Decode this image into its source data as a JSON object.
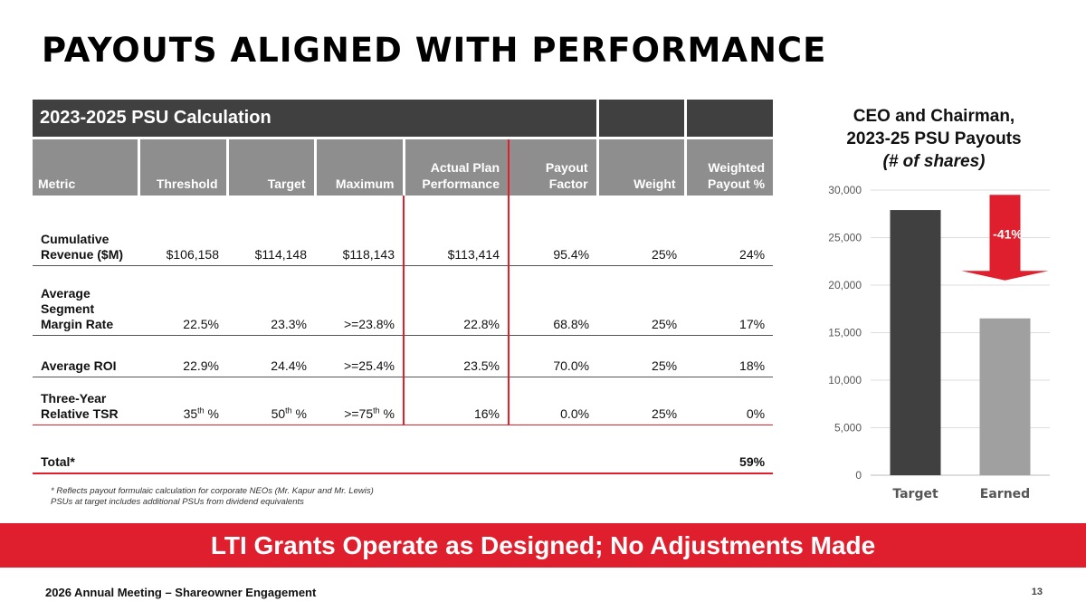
{
  "title": "PAYOUTS ALIGNED WITH PERFORMANCE",
  "table": {
    "banner": "2023-2025 PSU Calculation",
    "headers": {
      "metric": "Metric",
      "threshold": "Threshold",
      "target": "Target",
      "maximum": "Maximum",
      "actual_1": "Actual Plan",
      "actual_2": "Performance",
      "payout_1": "Payout",
      "payout_2": "Factor",
      "weight": "Weight",
      "weighted_1": "Weighted",
      "weighted_2": "Payout %"
    },
    "rows": [
      {
        "metric_1": "Cumulative",
        "metric_2": "Revenue ($M)",
        "threshold": "$106,158",
        "target": "$114,148",
        "maximum": "$118,143",
        "actual": "$113,414",
        "payout": "95.4%",
        "weight": "25%",
        "weighted": "24%"
      },
      {
        "metric_1": "Average",
        "metric_2": "Segment",
        "metric_3": "Margin Rate",
        "threshold": "22.5%",
        "target": "23.3%",
        "maximum": ">=23.8%",
        "actual": "22.8%",
        "payout": "68.8%",
        "weight": "25%",
        "weighted": "17%"
      },
      {
        "metric_1": "Average ROI",
        "threshold": "22.9%",
        "target": "24.4%",
        "maximum": ">=25.4%",
        "actual": "23.5%",
        "payout": "70.0%",
        "weight": "25%",
        "weighted": "18%"
      },
      {
        "metric_1": "Three-Year",
        "metric_2": "Relative TSR",
        "threshold_num": "35",
        "threshold_sup": "th",
        "threshold_pct": " %",
        "target_num": "50",
        "target_sup": "th",
        "target_pct": " %",
        "maximum_num": ">=75",
        "maximum_sup": "th",
        "maximum_pct": " %",
        "actual": "16%",
        "payout": "0.0%",
        "weight": "25%",
        "weighted": "0%"
      }
    ],
    "total": {
      "label": "Total*",
      "weighted": "59%"
    }
  },
  "footnote": {
    "line1": "* Reflects payout formulaic calculation for corporate NEOs (Mr. Kapur and Mr. Lewis)",
    "line2": "PSUs at target includes additional PSUs from dividend equivalents"
  },
  "chart_title": {
    "line1": "CEO and Chairman,",
    "line2": "2023-25 PSU Payouts",
    "line3": "(# of shares)"
  },
  "chart_data": {
    "type": "bar",
    "categories": [
      "Target",
      "Earned"
    ],
    "values": [
      27900,
      16500
    ],
    "ylim": [
      0,
      30000
    ],
    "yticks": [
      0,
      5000,
      10000,
      15000,
      20000,
      25000,
      30000
    ],
    "ytick_labels": [
      "0",
      "5,000",
      "10,000",
      "15,000",
      "20,000",
      "25,000",
      "30,000"
    ],
    "bar_colors": [
      "#404040",
      "#a0a0a0"
    ],
    "grid": true,
    "annotation": {
      "text": "-41%",
      "color": "#df1f2d",
      "type": "down-arrow"
    }
  },
  "conclusion": "LTI Grants Operate as Designed; No Adjustments Made",
  "footer": {
    "left": "2026 Annual Meeting – Shareowner Engagement",
    "page": "13"
  },
  "colors": {
    "accent": "#df1f2d",
    "dark": "#404040",
    "header_gray": "#8e8e8e"
  }
}
